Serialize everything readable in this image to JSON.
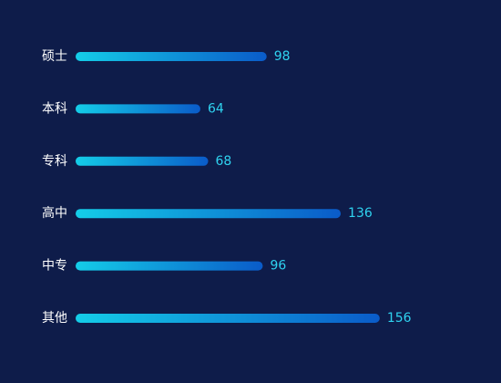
{
  "chart_data": {
    "type": "bar",
    "orientation": "horizontal",
    "categories": [
      "硕士",
      "本科",
      "专科",
      "高中",
      "中专",
      "其他"
    ],
    "values": [
      98,
      64,
      68,
      136,
      96,
      156
    ],
    "title": "",
    "xlabel": "",
    "ylabel": "",
    "grid": false,
    "colors": {
      "background": "#0e1c4a",
      "bar_start": "#14cde8",
      "bar_end": "#0a5bc9",
      "category_label": "#ffffff",
      "value_label": "#2fd3f0"
    }
  }
}
